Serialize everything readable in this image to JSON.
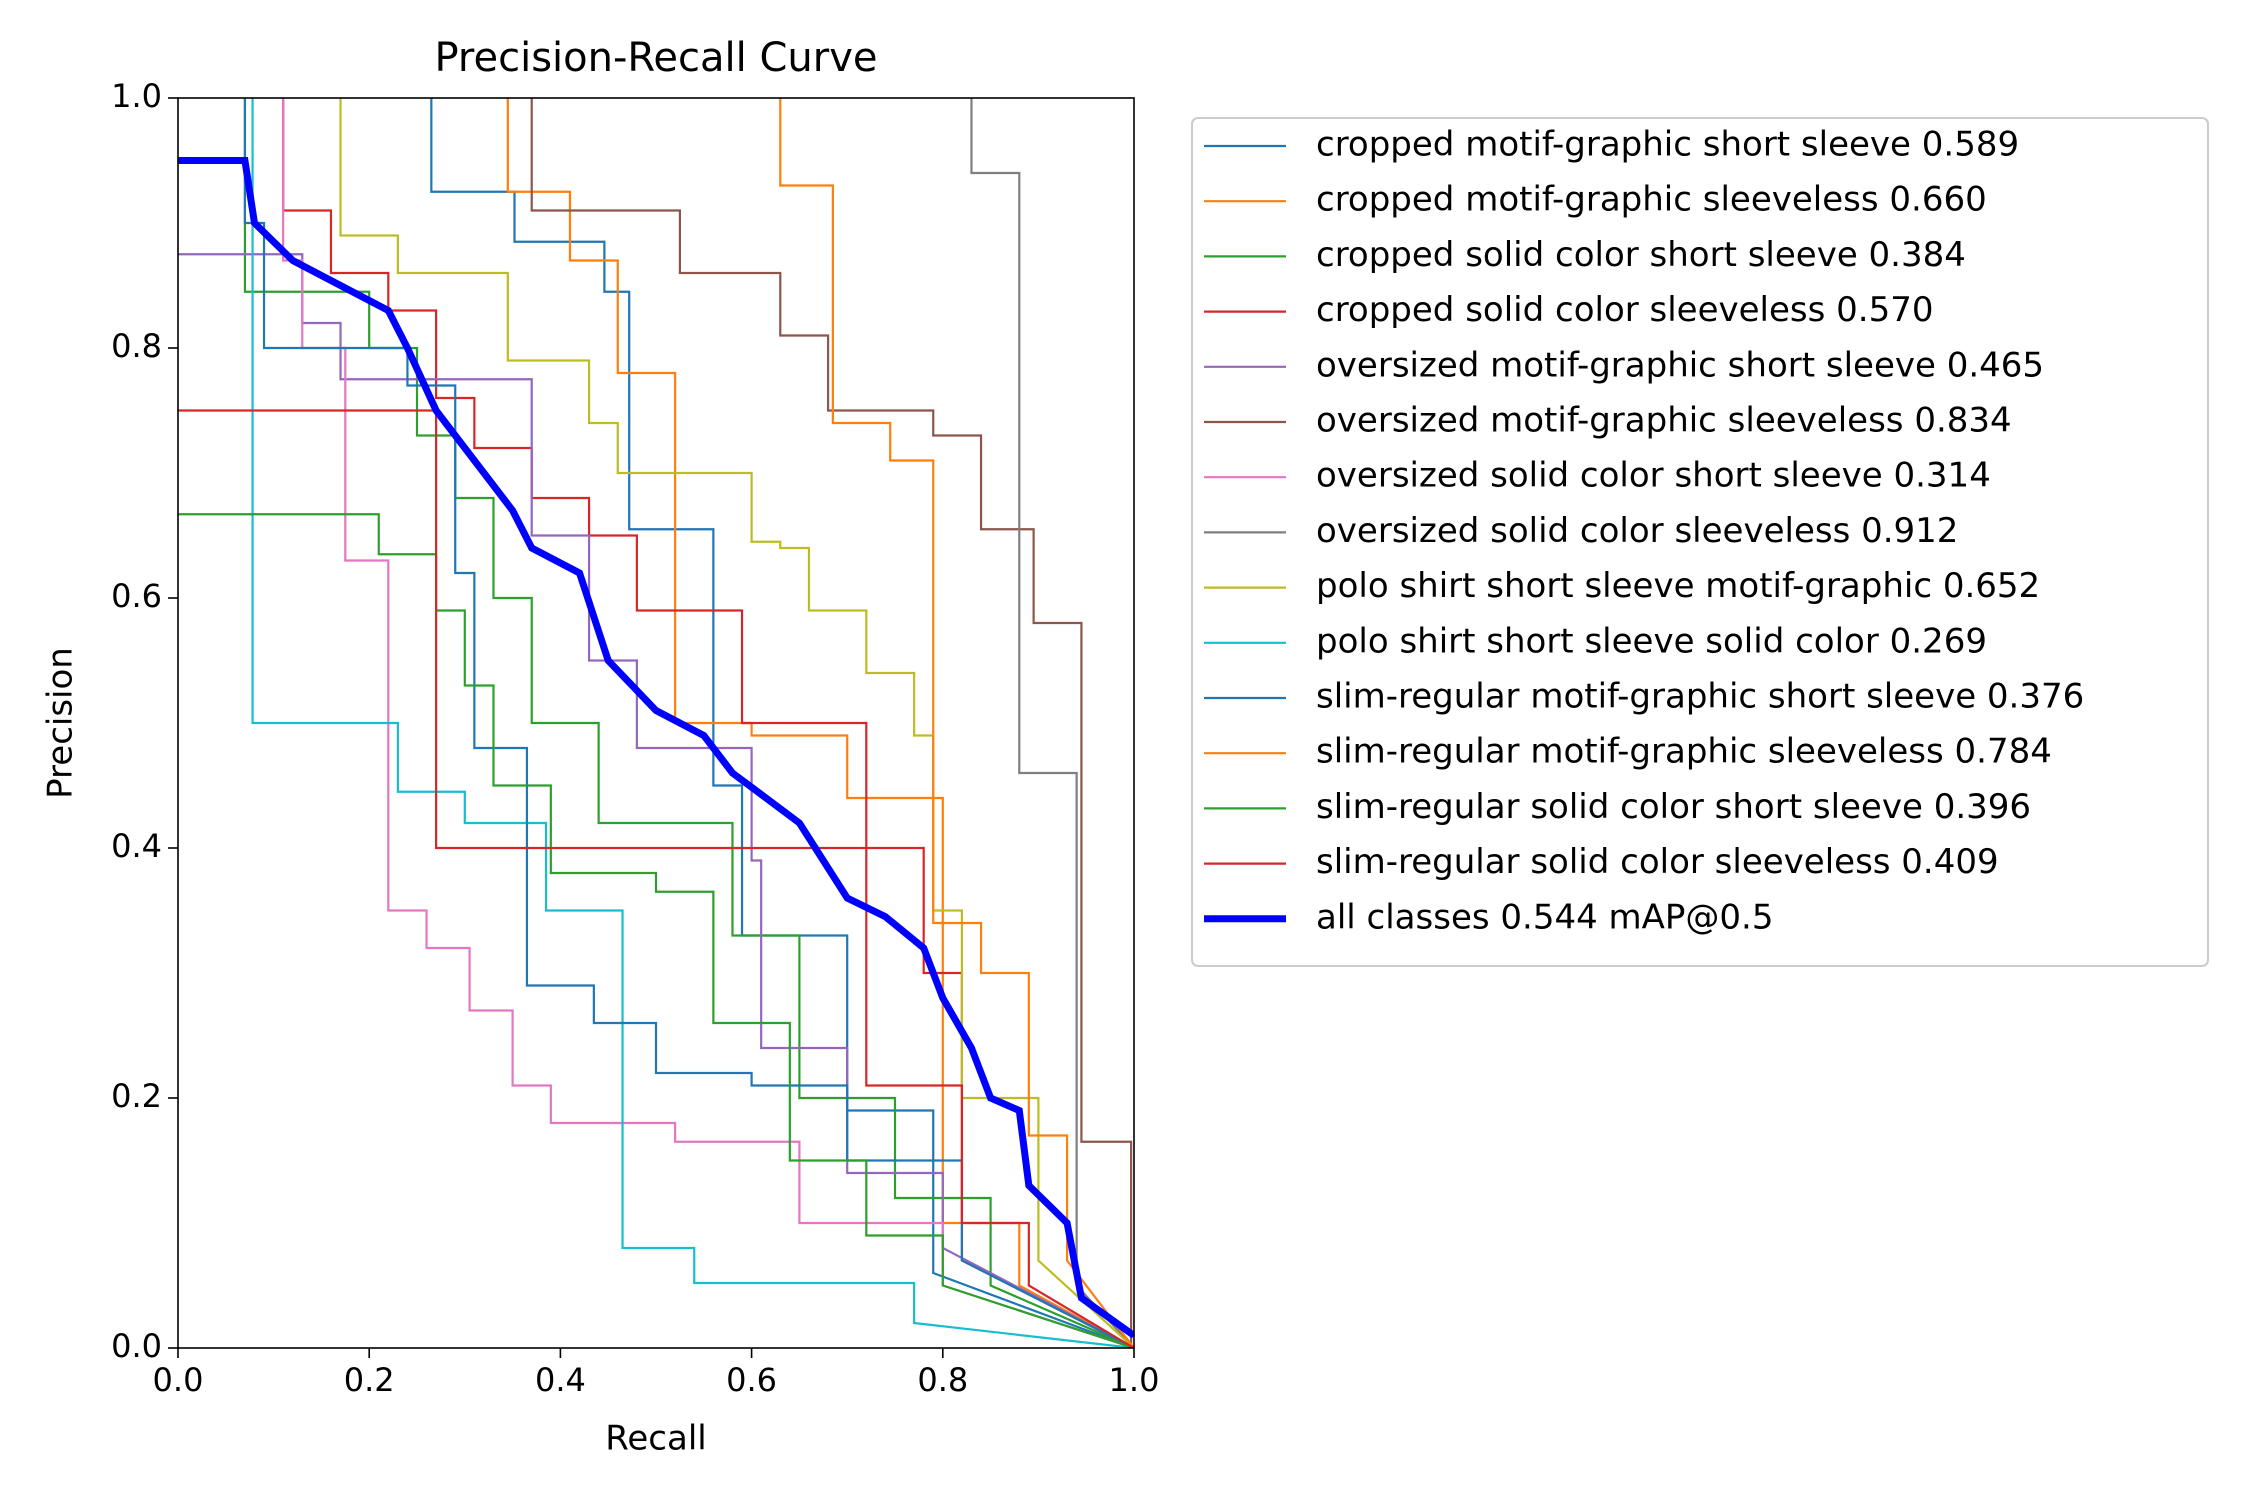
{
  "chart_data": {
    "type": "line",
    "title": "Precision-Recall Curve",
    "x_label": "Recall",
    "y_label": "Precision",
    "xlim": [
      0,
      1
    ],
    "ylim": [
      0,
      1
    ],
    "xticks": [
      {
        "value": 0,
        "label": "0.0"
      },
      0.2,
      0.4,
      0.6,
      0.8,
      {
        "value": 1,
        "label": "1.0"
      }
    ],
    "yticks": [
      {
        "value": 0,
        "label": "0.0"
      },
      0.2,
      0.4,
      0.6,
      0.8,
      {
        "value": 1,
        "label": "1.0"
      }
    ],
    "grid": false,
    "legend": "outside",
    "series": [
      {
        "name": "cropped motif-graphic short sleeve 0.589",
        "color": "#1f77b4",
        "x": [
          0.265,
          0.265,
          0.352,
          0.352,
          0.446,
          0.446,
          0.472,
          0.472,
          0.56,
          0.56,
          0.59,
          0.59,
          0.7,
          0.7,
          0.79,
          0.79,
          1.0
        ],
        "values": [
          1.0,
          0.925,
          0.925,
          0.885,
          0.885,
          0.845,
          0.845,
          0.655,
          0.655,
          0.45,
          0.45,
          0.33,
          0.33,
          0.19,
          0.19,
          0.06,
          0.0
        ]
      },
      {
        "name": "cropped motif-graphic sleeveless 0.660",
        "color": "#ff7f0e",
        "x": [
          0.345,
          0.345,
          0.41,
          0.41,
          0.46,
          0.46,
          0.52,
          0.52,
          0.6,
          0.6,
          0.7,
          0.7,
          0.8,
          0.8,
          0.88,
          0.88,
          1.0
        ],
        "values": [
          1.0,
          0.925,
          0.925,
          0.87,
          0.87,
          0.78,
          0.78,
          0.5,
          0.5,
          0.49,
          0.49,
          0.44,
          0.44,
          0.1,
          0.1,
          0.05,
          0.0
        ]
      },
      {
        "name": "cropped solid color short sleeve 0.384",
        "color": "#2ca02c",
        "x": [
          0.07,
          0.07,
          0.2,
          0.2,
          0.25,
          0.25,
          0.29,
          0.29,
          0.33,
          0.33,
          0.37,
          0.37,
          0.44,
          0.44,
          0.58,
          0.58,
          0.65,
          0.65,
          0.75,
          0.75,
          0.85,
          0.85,
          1.0
        ],
        "values": [
          1.0,
          0.845,
          0.845,
          0.8,
          0.8,
          0.73,
          0.73,
          0.68,
          0.68,
          0.6,
          0.6,
          0.5,
          0.5,
          0.42,
          0.42,
          0.33,
          0.33,
          0.2,
          0.2,
          0.12,
          0.12,
          0.05,
          0.0
        ]
      },
      {
        "name": "cropped solid color sleeveless 0.570",
        "color": "#d62728",
        "x": [
          0.11,
          0.11,
          0.16,
          0.16,
          0.22,
          0.22,
          0.27,
          0.27,
          0.31,
          0.31,
          0.37,
          0.37,
          0.43,
          0.43,
          0.48,
          0.48,
          0.59,
          0.59,
          0.72,
          0.72,
          0.78,
          0.78,
          0.82,
          0.82,
          1.0
        ],
        "values": [
          1.0,
          0.91,
          0.91,
          0.86,
          0.86,
          0.83,
          0.83,
          0.76,
          0.76,
          0.72,
          0.72,
          0.68,
          0.68,
          0.65,
          0.65,
          0.59,
          0.59,
          0.5,
          0.5,
          0.4,
          0.4,
          0.3,
          0.3,
          0.07,
          0.0
        ]
      },
      {
        "name": "oversized motif-graphic short sleeve 0.465",
        "color": "#9467bd",
        "x": [
          0.0,
          0.13,
          0.13,
          0.17,
          0.17,
          0.37,
          0.37,
          0.43,
          0.43,
          0.48,
          0.48,
          0.6,
          0.6,
          0.61,
          0.61,
          0.7,
          0.7,
          0.8,
          0.8,
          1.0
        ],
        "values": [
          0.875,
          0.875,
          0.82,
          0.82,
          0.775,
          0.775,
          0.65,
          0.65,
          0.55,
          0.55,
          0.48,
          0.48,
          0.39,
          0.39,
          0.24,
          0.24,
          0.14,
          0.14,
          0.08,
          0.0
        ]
      },
      {
        "name": "oversized motif-graphic sleeveless 0.834",
        "color": "#8c564b",
        "x": [
          0.37,
          0.37,
          0.525,
          0.525,
          0.63,
          0.63,
          0.68,
          0.68,
          0.79,
          0.79,
          0.84,
          0.84,
          0.895,
          0.895,
          0.945,
          0.945,
          0.997,
          0.997
        ],
        "values": [
          1.0,
          0.91,
          0.91,
          0.86,
          0.86,
          0.81,
          0.81,
          0.75,
          0.75,
          0.73,
          0.73,
          0.655,
          0.655,
          0.58,
          0.58,
          0.165,
          0.165,
          0.0
        ]
      },
      {
        "name": "oversized solid color short sleeve 0.314",
        "color": "#e377c2",
        "x": [
          0.11,
          0.11,
          0.13,
          0.13,
          0.175,
          0.175,
          0.22,
          0.22,
          0.26,
          0.26,
          0.305,
          0.305,
          0.35,
          0.35,
          0.39,
          0.39,
          0.52,
          0.52,
          0.65,
          0.65,
          0.8,
          0.8,
          1.0
        ],
        "values": [
          1.0,
          0.87,
          0.87,
          0.8,
          0.8,
          0.63,
          0.63,
          0.35,
          0.35,
          0.32,
          0.32,
          0.27,
          0.27,
          0.21,
          0.21,
          0.18,
          0.18,
          0.165,
          0.165,
          0.1,
          0.1,
          0.05,
          0.0
        ]
      },
      {
        "name": "oversized solid color sleeveless 0.912",
        "color": "#7f7f7f",
        "x": [
          0.83,
          0.83,
          0.88,
          0.88,
          0.94,
          0.94,
          1.0
        ],
        "values": [
          1.0,
          0.94,
          0.94,
          0.46,
          0.46,
          0.05,
          0.0
        ]
      },
      {
        "name": "polo shirt short sleeve motif-graphic 0.652",
        "color": "#bcbd22",
        "x": [
          0.17,
          0.17,
          0.23,
          0.23,
          0.345,
          0.345,
          0.43,
          0.43,
          0.46,
          0.46,
          0.6,
          0.6,
          0.63,
          0.63,
          0.66,
          0.66,
          0.72,
          0.72,
          0.77,
          0.77,
          0.79,
          0.79,
          0.82,
          0.82,
          0.9,
          0.9,
          1.0
        ],
        "values": [
          1.0,
          0.89,
          0.89,
          0.86,
          0.86,
          0.79,
          0.79,
          0.74,
          0.74,
          0.7,
          0.7,
          0.645,
          0.645,
          0.64,
          0.64,
          0.59,
          0.59,
          0.54,
          0.54,
          0.49,
          0.49,
          0.35,
          0.35,
          0.2,
          0.2,
          0.07,
          0.0
        ]
      },
      {
        "name": "polo shirt short sleeve solid color 0.269",
        "color": "#17becf",
        "x": [
          0.078,
          0.078,
          0.23,
          0.23,
          0.3,
          0.3,
          0.385,
          0.385,
          0.465,
          0.465,
          0.54,
          0.54,
          0.77,
          0.77,
          1.0
        ],
        "values": [
          1.0,
          0.5,
          0.5,
          0.445,
          0.445,
          0.42,
          0.42,
          0.35,
          0.35,
          0.08,
          0.08,
          0.052,
          0.052,
          0.02,
          0.0
        ]
      },
      {
        "name": "slim-regular motif-graphic short sleeve 0.376",
        "color": "#1f77b4",
        "x": [
          0.07,
          0.07,
          0.09,
          0.09,
          0.24,
          0.24,
          0.29,
          0.29,
          0.31,
          0.31,
          0.365,
          0.365,
          0.435,
          0.435,
          0.5,
          0.5,
          0.6,
          0.6,
          0.7,
          0.7,
          0.82,
          0.82,
          1.0
        ],
        "values": [
          1.0,
          0.9,
          0.9,
          0.8,
          0.8,
          0.77,
          0.77,
          0.62,
          0.62,
          0.48,
          0.48,
          0.29,
          0.29,
          0.26,
          0.26,
          0.22,
          0.22,
          0.21,
          0.21,
          0.15,
          0.15,
          0.07,
          0.0
        ]
      },
      {
        "name": "slim-regular motif-graphic sleeveless 0.784",
        "color": "#ff7f0e",
        "x": [
          0.63,
          0.63,
          0.685,
          0.685,
          0.745,
          0.745,
          0.79,
          0.79,
          0.84,
          0.84,
          0.89,
          0.89,
          0.93,
          0.93,
          1.0
        ],
        "values": [
          1.0,
          0.93,
          0.93,
          0.74,
          0.74,
          0.71,
          0.71,
          0.34,
          0.34,
          0.3,
          0.3,
          0.17,
          0.17,
          0.07,
          0.0
        ]
      },
      {
        "name": "slim-regular solid color short sleeve 0.396",
        "color": "#2ca02c",
        "x": [
          0.0,
          0.21,
          0.21,
          0.27,
          0.27,
          0.3,
          0.3,
          0.33,
          0.33,
          0.39,
          0.39,
          0.5,
          0.5,
          0.56,
          0.56,
          0.64,
          0.64,
          0.72,
          0.72,
          0.8,
          0.8,
          1.0
        ],
        "values": [
          0.667,
          0.667,
          0.635,
          0.635,
          0.59,
          0.59,
          0.53,
          0.53,
          0.45,
          0.45,
          0.38,
          0.38,
          0.365,
          0.365,
          0.26,
          0.26,
          0.15,
          0.15,
          0.09,
          0.09,
          0.05,
          0.0
        ]
      },
      {
        "name": "slim-regular solid color sleeveless 0.409",
        "color": "#d62728",
        "x": [
          0.0,
          0.27,
          0.27,
          0.72,
          0.72,
          0.82,
          0.82,
          0.89,
          0.89,
          1.0
        ],
        "values": [
          0.75,
          0.75,
          0.4,
          0.4,
          0.21,
          0.21,
          0.1,
          0.1,
          0.05,
          0.0
        ]
      },
      {
        "name": "all classes 0.544 mAP@0.5",
        "color": "#0000ff",
        "x": [
          0.0,
          0.07,
          0.08,
          0.12,
          0.17,
          0.22,
          0.24,
          0.27,
          0.3,
          0.35,
          0.37,
          0.42,
          0.45,
          0.5,
          0.55,
          0.58,
          0.65,
          0.7,
          0.74,
          0.78,
          0.8,
          0.83,
          0.85,
          0.88,
          0.89,
          0.93,
          0.945,
          1.0
        ],
        "values": [
          0.95,
          0.95,
          0.9,
          0.87,
          0.85,
          0.83,
          0.8,
          0.75,
          0.72,
          0.67,
          0.64,
          0.62,
          0.55,
          0.51,
          0.49,
          0.46,
          0.42,
          0.36,
          0.345,
          0.32,
          0.28,
          0.24,
          0.2,
          0.19,
          0.13,
          0.1,
          0.04,
          0.01
        ]
      }
    ]
  }
}
